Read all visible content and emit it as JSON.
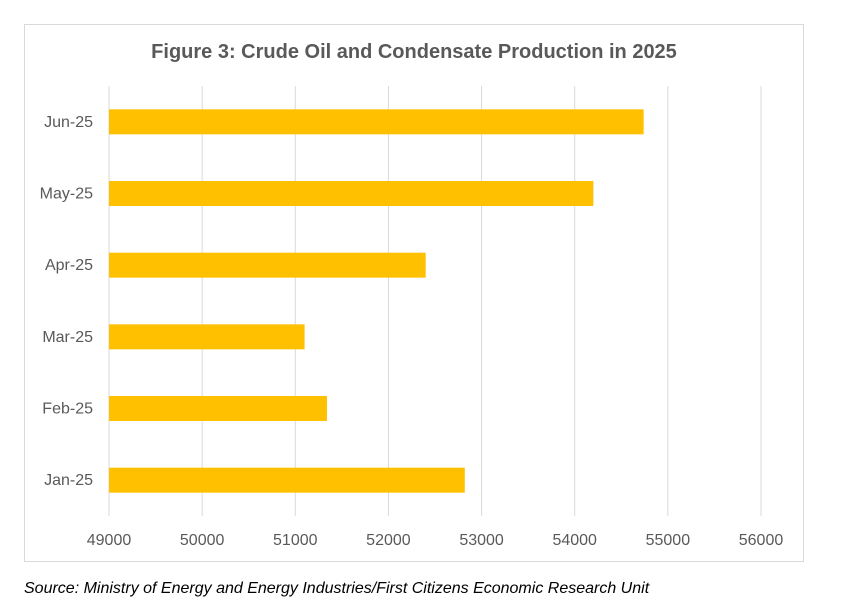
{
  "chart_data": {
    "type": "bar",
    "orientation": "horizontal",
    "title": "Figure 3: Crude Oil and Condensate Production in 2025",
    "categories": [
      "Jan-25",
      "Feb-25",
      "Mar-25",
      "Apr-25",
      "May-25",
      "Jun-25"
    ],
    "values": [
      52820,
      51340,
      51100,
      52400,
      54200,
      54740
    ],
    "xlim": [
      49000,
      56000
    ],
    "xticks": [
      "49000",
      "50000",
      "51000",
      "52000",
      "53000",
      "54000",
      "55000",
      "56000"
    ],
    "xlabel": "",
    "ylabel": "",
    "grid": true,
    "legend": "none",
    "bar_color": "#FFC000"
  },
  "source": "Source: Ministry of Energy and Energy Industries/First Citizens Economic Research Unit"
}
